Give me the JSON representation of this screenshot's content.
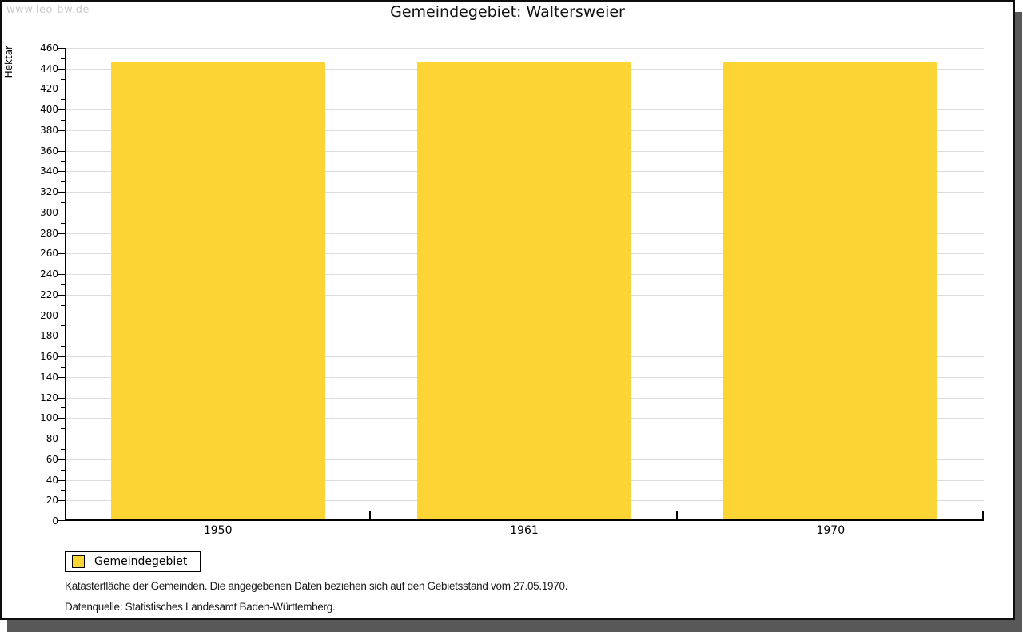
{
  "watermark": "www.leo-bw.de",
  "chart_data": {
    "type": "bar",
    "title": "Gemeindegebiet: Waltersweier",
    "ylabel": "Hektar",
    "categories": [
      "1950",
      "1961",
      "1970"
    ],
    "series": [
      {
        "name": "Gemeindegebiet",
        "values": [
          447,
          447,
          447
        ]
      }
    ],
    "ylim": [
      0,
      460
    ],
    "ytick_step": 20,
    "minor_tick_step": 10,
    "grid": true,
    "legend_position": "bottom-left",
    "bar_color": "#FCD535",
    "grid_color": "#dcdcdc"
  },
  "legend": {
    "items": [
      {
        "label": "Gemeindegebiet",
        "color": "#FCD535"
      }
    ]
  },
  "footer": {
    "line1": "Katasterfläche der Gemeinden. Die angegebenen Daten beziehen sich auf den Gebietsstand vom 27.05.1970.",
    "line2": "Datenquelle: Statistisches Landesamt Baden-Württemberg."
  }
}
